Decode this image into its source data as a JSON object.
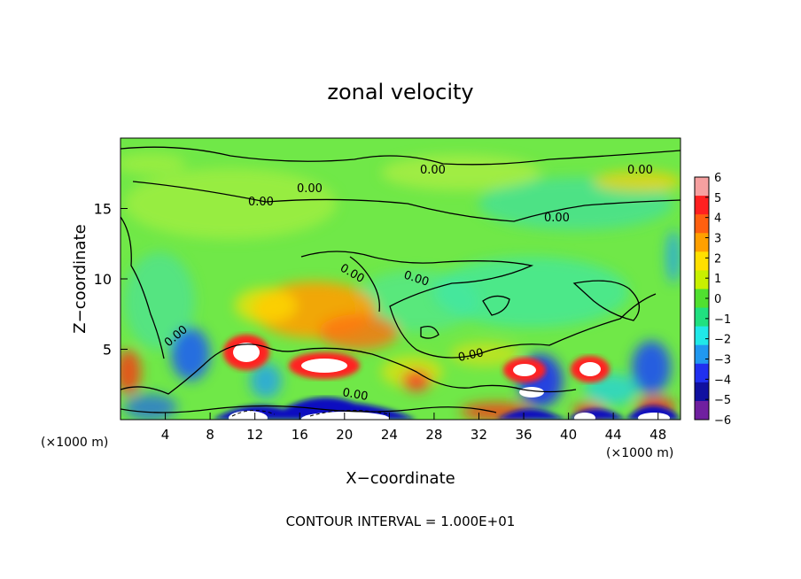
{
  "chart_data": {
    "type": "heatmap",
    "title": "zonal velocity",
    "xlabel": "X−coordinate",
    "ylabel": "Z−coordinate",
    "x_unit": "(×1000 m)",
    "y_unit": "(×1000 m)",
    "xlim": [
      0,
      50
    ],
    "ylim": [
      0,
      20
    ],
    "x_ticks": [
      "4",
      "8",
      "12",
      "16",
      "20",
      "24",
      "28",
      "32",
      "36",
      "40",
      "44",
      "48"
    ],
    "y_ticks": [
      "5",
      "10",
      "15"
    ],
    "colorbar": {
      "labels": [
        "6",
        "5",
        "4",
        "3",
        "2",
        "1",
        "0",
        "−1",
        "−2",
        "−3",
        "−4",
        "−5",
        "−6"
      ],
      "levels": [
        6,
        5,
        4,
        3,
        2,
        1,
        0,
        -1,
        -2,
        -3,
        -4,
        -5,
        -6
      ],
      "colors": [
        "#f6a0a0",
        "#ff2020",
        "#ff6010",
        "#ffa000",
        "#ffe000",
        "#c8f000",
        "#50e030",
        "#20e080",
        "#20e8e8",
        "#2098f0",
        "#2030f0",
        "#1010a0",
        "#7020a0"
      ]
    },
    "background_color": "#70e848",
    "contour_labels": [
      "0.00",
      "0.00",
      "0.00",
      "0.00",
      "0.00",
      "0.00",
      "0.00",
      "0.00",
      "0.00",
      "0.00"
    ],
    "features": [
      {
        "x": 10.8,
        "z": 4.9,
        "value": 6
      },
      {
        "x": 18.0,
        "z": 3.8,
        "value": 6
      },
      {
        "x": 36.0,
        "z": 3.5,
        "value": 6
      },
      {
        "x": 41.8,
        "z": 3.5,
        "value": 6
      },
      {
        "x": 19.0,
        "z": 7.5,
        "value": 3
      },
      {
        "x": 22.5,
        "z": 5.5,
        "value": 3
      },
      {
        "x": 36.0,
        "z": 2.0,
        "value": -5
      },
      {
        "x": 6.5,
        "z": 4.5,
        "value": -3
      },
      {
        "x": 47.0,
        "z": 4.0,
        "value": -3
      },
      {
        "x": 18.0,
        "z": 0.6,
        "value": -5
      }
    ],
    "footer": "CONTOUR INTERVAL = 1.000E+01"
  }
}
